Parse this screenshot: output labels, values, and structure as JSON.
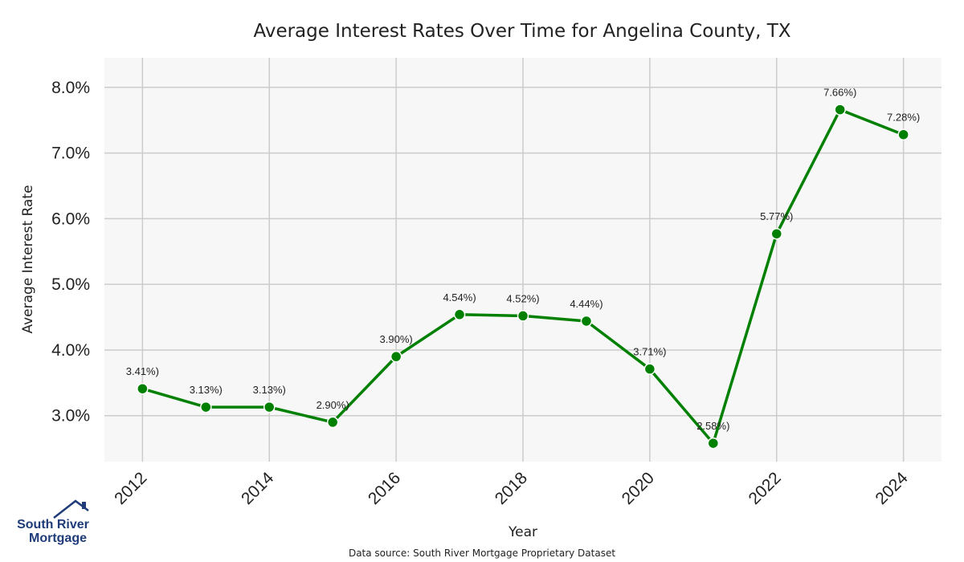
{
  "chart_data": {
    "type": "line",
    "title": "Average Interest Rates Over Time for Angelina County, TX",
    "xlabel": "Year",
    "ylabel": "Average Interest Rate",
    "x": [
      2012,
      2013,
      2014,
      2015,
      2016,
      2017,
      2018,
      2019,
      2020,
      2021,
      2022,
      2023,
      2024
    ],
    "x_ticks": [
      "2012",
      "2014",
      "2016",
      "2018",
      "2020",
      "2022",
      "2024"
    ],
    "y_ticks": [
      "3.0%",
      "4.0%",
      "5.0%",
      "6.0%",
      "7.0%",
      "8.0%"
    ],
    "series": [
      {
        "values": [
          3.41,
          3.13,
          3.13,
          2.9,
          3.9,
          4.54,
          4.52,
          4.44,
          3.71,
          2.58,
          5.77,
          7.66,
          7.28
        ],
        "labels": [
          "3.41%)",
          "3.13%)",
          "3.13%)",
          "2.90%)",
          "3.90%)",
          "4.54%)",
          "4.52%)",
          "4.44%)",
          "3.71%)",
          "2.58%)",
          "5.77%)",
          "7.66%)",
          "7.28%)"
        ],
        "color": "#008000"
      }
    ],
    "xlim": [
      2011.4,
      2024.6
    ],
    "ylim": [
      2.3,
      8.45
    ],
    "grid": true,
    "background": "#f7f7f7",
    "grid_color": "#cccccc"
  },
  "source_note": "Data source: South River Mortgage Proprietary Dataset",
  "logo": {
    "line1": "South River",
    "line2": "Mortgage",
    "color": "#1f3b78",
    "icon": "house-roof-icon"
  }
}
